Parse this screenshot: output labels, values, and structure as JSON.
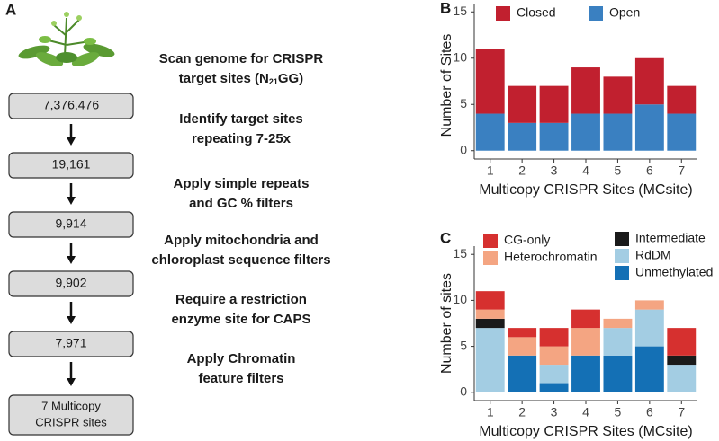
{
  "panels": [
    "A",
    "B",
    "C"
  ],
  "flowchart": {
    "counts": [
      "7,376,476",
      "19,161",
      "9,914",
      "9,902",
      "7,971"
    ],
    "final": [
      "7 Multicopy",
      "CRISPR sites"
    ],
    "steps": [
      {
        "line1": "Scan genome for CRISPR",
        "line2": [
          "target sites (N",
          "21",
          "GG)"
        ]
      },
      [
        "Identify target sites",
        "repeating 7-25x"
      ],
      [
        "Apply simple repeats",
        "and GC % filters"
      ],
      [
        "Apply mitochondria and",
        "chloroplast sequence filters"
      ],
      [
        "Require a restriction",
        "enzyme site for CAPS"
      ],
      [
        "Apply Chromatin",
        "feature filters"
      ]
    ]
  },
  "chart_data": [
    {
      "type": "stacked_bar",
      "x_label": "Multicopy CRISPR Sites (MCsite)",
      "y_label": "Number of Sites",
      "categories": [
        "1",
        "2",
        "3",
        "4",
        "5",
        "6",
        "7"
      ],
      "series": [
        {
          "name": "Open",
          "color": "#3a80c1",
          "values": [
            4,
            3,
            3,
            4,
            4,
            5,
            4
          ]
        },
        {
          "name": "Closed",
          "color": "#c1202f",
          "values": [
            7,
            4,
            4,
            5,
            4,
            5,
            3
          ]
        }
      ],
      "ylim": [
        -0.9,
        15.9
      ],
      "yticks": [
        0,
        5,
        10,
        15
      ],
      "legend": "top"
    },
    {
      "type": "stacked_bar",
      "x_label": "Multicopy CRISPR Sites (MCsite)",
      "y_label": "Number of sites",
      "categories": [
        "1",
        "2",
        "3",
        "4",
        "5",
        "6",
        "7"
      ],
      "series": [
        {
          "name": "Unmethylated",
          "color": "#1470b5",
          "values": [
            0,
            4,
            1,
            4,
            4,
            5,
            0
          ]
        },
        {
          "name": "RdDM",
          "color": "#a3cde3",
          "values": [
            7,
            0,
            2,
            0,
            3,
            4,
            3
          ]
        },
        {
          "name": "Intermediate",
          "color": "#1a1a1a",
          "values": [
            1,
            0,
            0,
            0,
            0,
            0,
            1
          ]
        },
        {
          "name": "Heterochromatin",
          "color": "#f4a582",
          "values": [
            1,
            2,
            2,
            3,
            1,
            1,
            0
          ]
        },
        {
          "name": "CG-only",
          "color": "#d6302f",
          "values": [
            2,
            1,
            2,
            2,
            0,
            0,
            3
          ]
        }
      ],
      "ylim": [
        -0.9,
        15.9
      ],
      "yticks": [
        0,
        5,
        10,
        15
      ],
      "legend": "top"
    }
  ]
}
